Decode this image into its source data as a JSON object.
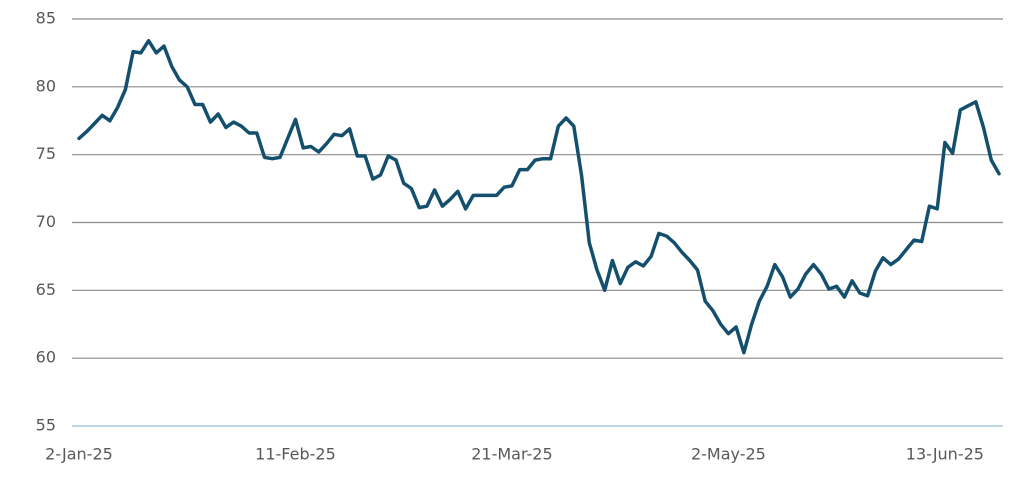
{
  "chart_data": {
    "type": "line",
    "categories": [
      "2-Jan-25",
      null,
      null,
      null,
      null,
      null,
      null,
      null,
      null,
      null,
      null,
      null,
      null,
      null,
      null,
      null,
      null,
      null,
      null,
      null,
      null,
      null,
      null,
      null,
      null,
      null,
      null,
      null,
      "11-Feb-25",
      null,
      null,
      null,
      null,
      null,
      null,
      null,
      null,
      null,
      null,
      null,
      null,
      null,
      null,
      null,
      null,
      null,
      null,
      null,
      null,
      null,
      null,
      null,
      null,
      null,
      null,
      null,
      "21-Mar-25",
      null,
      null,
      null,
      null,
      null,
      null,
      null,
      null,
      null,
      null,
      null,
      null,
      null,
      null,
      null,
      null,
      null,
      null,
      null,
      null,
      null,
      null,
      null,
      null,
      null,
      null,
      null,
      "2-May-25",
      null,
      null,
      null,
      null,
      null,
      null,
      null,
      null,
      null,
      null,
      null,
      null,
      null,
      null,
      null,
      null,
      null,
      null,
      null,
      null,
      null,
      null,
      null,
      null,
      null,
      null,
      null,
      "13-Jun-25",
      null,
      null,
      null,
      null,
      null,
      null,
      null
    ],
    "series": [
      {
        "color": "#14506e",
        "values": [
          76.2,
          76.7,
          77.3,
          77.9,
          77.5,
          78.5,
          79.8,
          82.6,
          82.5,
          83.4,
          82.5,
          83.0,
          81.5,
          80.5,
          80.0,
          78.7,
          78.7,
          77.4,
          78.0,
          77.0,
          77.4,
          77.1,
          76.6,
          76.6,
          74.8,
          74.7,
          74.8,
          76.2,
          77.6,
          75.5,
          75.6,
          75.2,
          75.8,
          76.5,
          76.4,
          76.9,
          74.9,
          74.9,
          73.2,
          73.5,
          74.9,
          74.6,
          72.9,
          72.5,
          71.1,
          71.2,
          72.4,
          71.2,
          71.7,
          72.3,
          71.0,
          72.0,
          72.0,
          72.0,
          72.0,
          72.6,
          72.7,
          73.9,
          73.9,
          74.6,
          74.7,
          74.7,
          77.1,
          77.7,
          77.1,
          73.5,
          68.5,
          66.5,
          65.0,
          67.2,
          65.5,
          66.7,
          67.1,
          66.8,
          67.5,
          69.2,
          69.0,
          68.5,
          67.8,
          67.2,
          66.5,
          64.2,
          63.5,
          62.5,
          61.8,
          62.3,
          60.4,
          62.5,
          64.2,
          65.3,
          66.9,
          66.0,
          64.5,
          65.1,
          66.2,
          66.9,
          66.2,
          65.1,
          65.3,
          64.5,
          65.7,
          64.8,
          64.6,
          66.4,
          67.4,
          66.9,
          67.3,
          68.0,
          68.7,
          68.6,
          71.2,
          71.0,
          75.9,
          75.1,
          78.3,
          78.6,
          78.9,
          77.0,
          74.6,
          73.6
        ]
      }
    ],
    "ylim": [
      55,
      85
    ],
    "yticks": [
      55,
      60,
      65,
      70,
      75,
      80,
      85
    ],
    "grid": true
  }
}
